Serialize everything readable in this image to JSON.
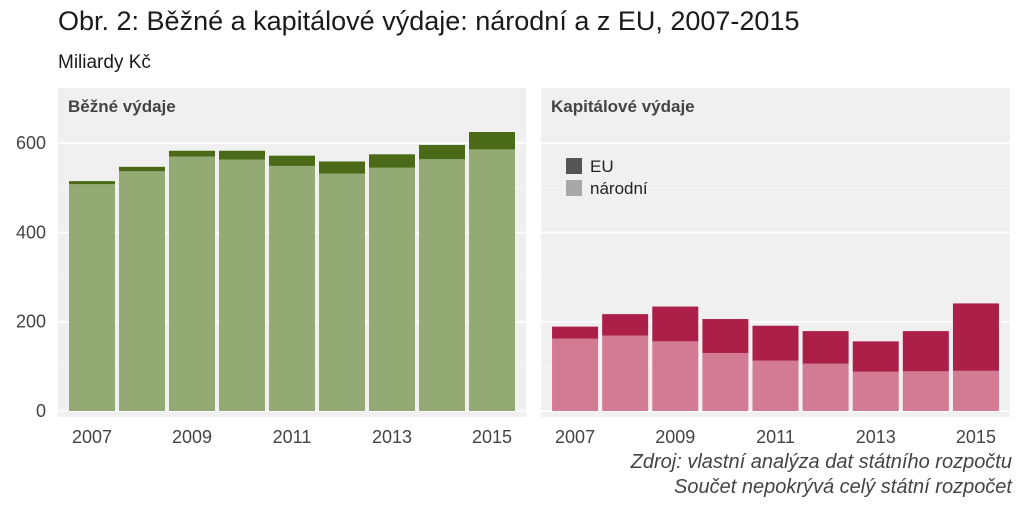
{
  "title": "Obr. 2: Běžné a kapitálové výdaje: národní a z EU, 2007-2015",
  "subtitle": "Miliardy Kč",
  "source_lines": [
    "Zdroj: vlastní analýza dat státního rozpočtu",
    "Součet nepokrývá celý státní rozpočet"
  ],
  "legend": {
    "items": [
      {
        "label": "EU",
        "color": "#555555"
      },
      {
        "label": "národní",
        "color": "#a8a8a8"
      }
    ]
  },
  "chart_data": [
    {
      "type": "bar",
      "stacked": true,
      "panel_title": "Běžné výdaje",
      "categories": [
        "2007",
        "2008",
        "2009",
        "2010",
        "2011",
        "2012",
        "2013",
        "2014",
        "2015"
      ],
      "x_tick_labels": [
        "2007",
        "2009",
        "2011",
        "2013",
        "2015"
      ],
      "series": [
        {
          "name": "národní",
          "color": "#94aa74",
          "values": [
            508,
            537,
            570,
            563,
            549,
            532,
            545,
            564,
            586
          ]
        },
        {
          "name": "EU",
          "color": "#4a6a18",
          "values": [
            7,
            10,
            13,
            20,
            23,
            27,
            30,
            32,
            39
          ]
        }
      ],
      "ylim": [
        0,
        700
      ],
      "y_ticks": [
        0,
        200,
        400,
        600
      ],
      "grid": true
    },
    {
      "type": "bar",
      "stacked": true,
      "panel_title": "Kapitálové výdaje",
      "categories": [
        "2007",
        "2008",
        "2009",
        "2010",
        "2011",
        "2012",
        "2013",
        "2014",
        "2015"
      ],
      "x_tick_labels": [
        "2007",
        "2009",
        "2011",
        "2013",
        "2015"
      ],
      "series": [
        {
          "name": "národní",
          "color": "#d37a94",
          "values": [
            162,
            169,
            156,
            130,
            113,
            106,
            88,
            89,
            90
          ]
        },
        {
          "name": "EU",
          "color": "#ac1f48",
          "values": [
            27,
            48,
            78,
            76,
            78,
            73,
            68,
            90,
            151
          ]
        }
      ],
      "ylim": [
        0,
        700
      ],
      "y_ticks": [
        0,
        200,
        400,
        600
      ],
      "grid": true
    }
  ]
}
